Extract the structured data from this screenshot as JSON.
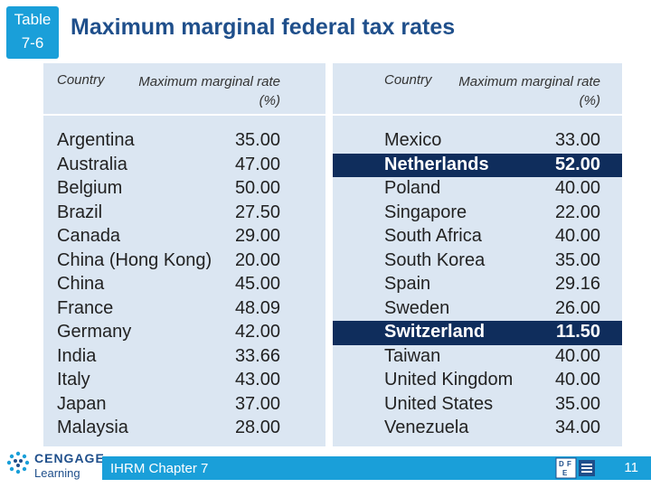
{
  "slide": {
    "tag_line1": "Table",
    "tag_line2": "7-6",
    "title": "Maximum marginal federal tax rates",
    "col_country": "Country",
    "col_rate": "Maximum marginal rate (%)",
    "footer": "IHRM Chapter 7",
    "page_number": "11",
    "logo_line1": "CENGAGE",
    "logo_line2": "Learning",
    "accent_color": "#1a9fd9",
    "highlight_color": "#0f2d5c"
  },
  "left_rows": [
    {
      "country": "Argentina",
      "rate": "35.00"
    },
    {
      "country": "Australia",
      "rate": "47.00"
    },
    {
      "country": "Belgium",
      "rate": "50.00"
    },
    {
      "country": "Brazil",
      "rate": "27.50"
    },
    {
      "country": "Canada",
      "rate": "29.00"
    },
    {
      "country": "China (Hong Kong)",
      "rate": "20.00"
    },
    {
      "country": "China",
      "rate": "45.00"
    },
    {
      "country": "France",
      "rate": "48.09"
    },
    {
      "country": "Germany",
      "rate": "42.00"
    },
    {
      "country": "India",
      "rate": "33.66"
    },
    {
      "country": "Italy",
      "rate": "43.00"
    },
    {
      "country": "Japan",
      "rate": "37.00"
    },
    {
      "country": "Malaysia",
      "rate": "28.00"
    }
  ],
  "right_rows": [
    {
      "country": "Mexico",
      "rate": "33.00",
      "highlight": false
    },
    {
      "country": "Netherlands",
      "rate": "52.00",
      "highlight": true
    },
    {
      "country": "Poland",
      "rate": "40.00",
      "highlight": false
    },
    {
      "country": "Singapore",
      "rate": "22.00",
      "highlight": false
    },
    {
      "country": "South Africa",
      "rate": "40.00",
      "highlight": false
    },
    {
      "country": "South Korea",
      "rate": "35.00",
      "highlight": false
    },
    {
      "country": "Spain",
      "rate": "29.16",
      "highlight": false
    },
    {
      "country": "Sweden",
      "rate": "26.00",
      "highlight": false
    },
    {
      "country": "Switzerland",
      "rate": "11.50",
      "highlight": true
    },
    {
      "country": "Taiwan",
      "rate": "40.00",
      "highlight": false
    },
    {
      "country": "United Kingdom",
      "rate": "40.00",
      "highlight": false
    },
    {
      "country": "United States",
      "rate": "35.00",
      "highlight": false
    },
    {
      "country": "Venezuela",
      "rate": "34.00",
      "highlight": false
    }
  ]
}
